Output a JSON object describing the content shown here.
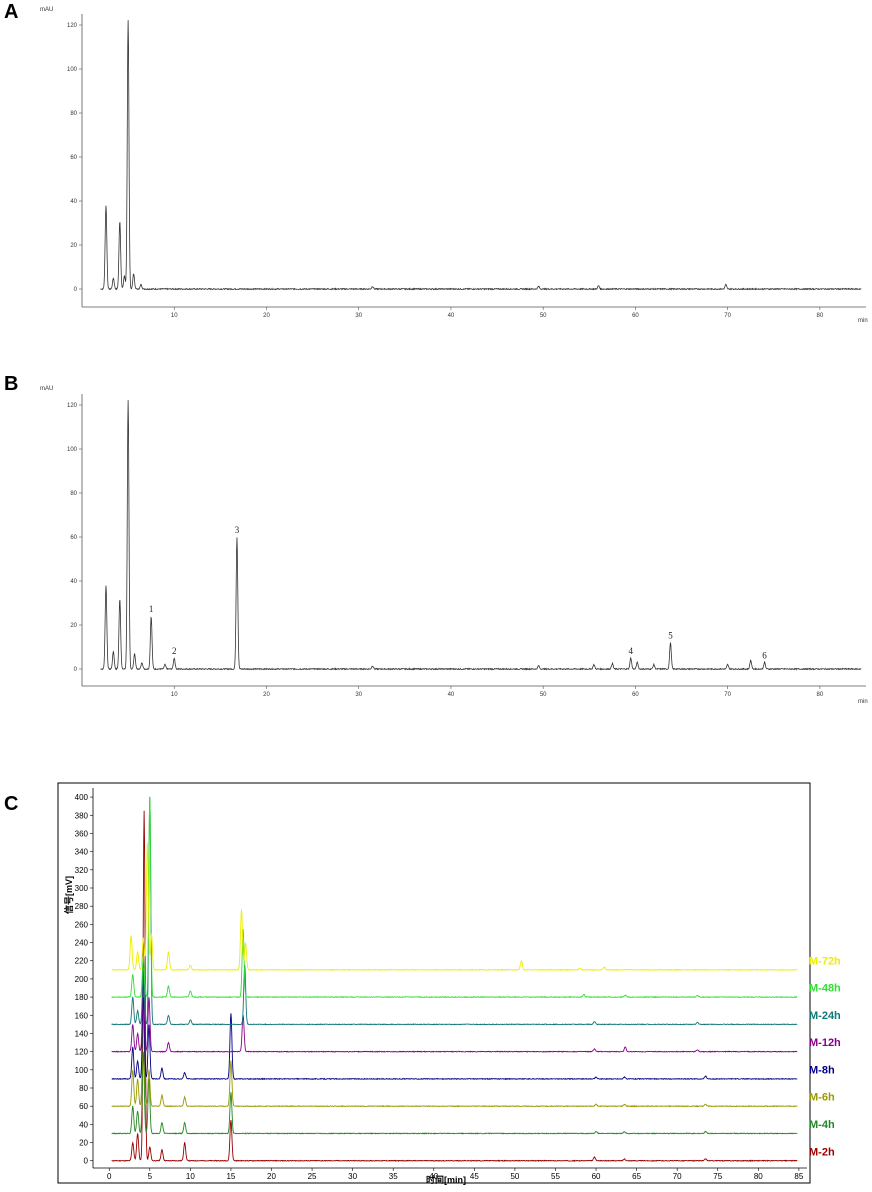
{
  "panels": {
    "a": {
      "letter": "A",
      "y_unit": "mAU",
      "x_unit": "min"
    },
    "b": {
      "letter": "B",
      "y_unit": "mAU",
      "x_unit": "min"
    },
    "c": {
      "letter": "C",
      "ylabel": "信号[mV]",
      "xlabel": "时间[min]"
    }
  },
  "chart_data": [
    {
      "type": "line",
      "panel": "A",
      "xlim": [
        0,
        85
      ],
      "ylim": [
        -5,
        125
      ],
      "x_ticks": [
        10,
        20,
        30,
        40,
        50,
        60,
        70,
        80
      ],
      "y_ticks": [
        0,
        20,
        40,
        60,
        80,
        100,
        120
      ],
      "x_unit": "min",
      "y_unit": "mAU",
      "color": "#333333",
      "peaks": [
        {
          "x": 2.6,
          "y": 38
        },
        {
          "x": 3.4,
          "y": 5
        },
        {
          "x": 4.1,
          "y": 31
        },
        {
          "x": 4.6,
          "y": 6
        },
        {
          "x": 5.0,
          "y": 122
        },
        {
          "x": 5.6,
          "y": 7
        },
        {
          "x": 6.4,
          "y": 2
        },
        {
          "x": 31.5,
          "y": 1.2
        },
        {
          "x": 49.5,
          "y": 1.2
        },
        {
          "x": 56.0,
          "y": 1.5
        },
        {
          "x": 69.8,
          "y": 2
        }
      ]
    },
    {
      "type": "line",
      "panel": "B",
      "xlim": [
        0,
        85
      ],
      "ylim": [
        -5,
        125
      ],
      "x_ticks": [
        10,
        20,
        30,
        40,
        50,
        60,
        70,
        80
      ],
      "y_ticks": [
        0,
        20,
        40,
        60,
        80,
        100,
        120
      ],
      "x_unit": "min",
      "y_unit": "mAU",
      "color": "#333333",
      "peaks": [
        {
          "x": 2.6,
          "y": 38
        },
        {
          "x": 3.4,
          "y": 8
        },
        {
          "x": 4.1,
          "y": 32
        },
        {
          "x": 5.0,
          "y": 122
        },
        {
          "x": 5.7,
          "y": 7
        },
        {
          "x": 6.5,
          "y": 3
        },
        {
          "x": 7.5,
          "y": 24,
          "label": "1"
        },
        {
          "x": 9.0,
          "y": 2
        },
        {
          "x": 10.0,
          "y": 5,
          "label": "2"
        },
        {
          "x": 16.8,
          "y": 60,
          "label": "3"
        },
        {
          "x": 31.5,
          "y": 1.5
        },
        {
          "x": 49.5,
          "y": 1.5
        },
        {
          "x": 55.5,
          "y": 2
        },
        {
          "x": 57.5,
          "y": 2.5
        },
        {
          "x": 59.5,
          "y": 5,
          "label": "4"
        },
        {
          "x": 60.2,
          "y": 3
        },
        {
          "x": 62.0,
          "y": 2
        },
        {
          "x": 63.8,
          "y": 12,
          "label": "5"
        },
        {
          "x": 70.0,
          "y": 2
        },
        {
          "x": 72.5,
          "y": 4
        },
        {
          "x": 74.0,
          "y": 3,
          "label": "6"
        }
      ]
    },
    {
      "type": "line",
      "panel": "C",
      "xlim": [
        -2,
        86
      ],
      "ylim": [
        -8,
        410
      ],
      "x_ticks": [
        0,
        5,
        10,
        15,
        20,
        25,
        30,
        35,
        40,
        45,
        50,
        55,
        60,
        65,
        70,
        75,
        80,
        85
      ],
      "y_ticks": [
        0,
        20,
        40,
        60,
        80,
        100,
        120,
        140,
        160,
        180,
        200,
        220,
        240,
        260,
        280,
        300,
        320,
        340,
        360,
        380,
        400
      ],
      "xlabel": "时间[min]",
      "ylabel": "信号[mV]",
      "series": [
        {
          "name": "M-2h",
          "color": "#990000",
          "offset": 0,
          "peaks": [
            {
              "x": 2.9,
              "y": 20
            },
            {
              "x": 3.5,
              "y": 30
            },
            {
              "x": 4.3,
              "y": 385
            },
            {
              "x": 5.0,
              "y": 15
            },
            {
              "x": 6.5,
              "y": 12
            },
            {
              "x": 9.3,
              "y": 20
            },
            {
              "x": 15.0,
              "y": 45
            },
            {
              "x": 59.8,
              "y": 4
            },
            {
              "x": 63.5,
              "y": 2
            },
            {
              "x": 73.5,
              "y": 2
            }
          ]
        },
        {
          "name": "M-4h",
          "color": "#228822",
          "offset": 30,
          "peaks": [
            {
              "x": 2.9,
              "y": 30
            },
            {
              "x": 3.5,
              "y": 25
            },
            {
              "x": 4.2,
              "y": 90
            },
            {
              "x": 4.9,
              "y": 60
            },
            {
              "x": 6.5,
              "y": 12
            },
            {
              "x": 9.3,
              "y": 12
            },
            {
              "x": 15.0,
              "y": 45
            },
            {
              "x": 60.0,
              "y": 2
            },
            {
              "x": 63.5,
              "y": 2
            },
            {
              "x": 73.5,
              "y": 2
            }
          ]
        },
        {
          "name": "M-6h",
          "color": "#999900",
          "offset": 60,
          "peaks": [
            {
              "x": 2.9,
              "y": 40
            },
            {
              "x": 3.5,
              "y": 30
            },
            {
              "x": 4.2,
              "y": 110
            },
            {
              "x": 4.9,
              "y": 40
            },
            {
              "x": 6.5,
              "y": 12
            },
            {
              "x": 9.3,
              "y": 10
            },
            {
              "x": 15.0,
              "y": 50
            },
            {
              "x": 60.0,
              "y": 2
            },
            {
              "x": 63.5,
              "y": 2
            },
            {
              "x": 73.5,
              "y": 2
            }
          ]
        },
        {
          "name": "M-8h",
          "color": "#000088",
          "offset": 90,
          "peaks": [
            {
              "x": 2.9,
              "y": 35
            },
            {
              "x": 3.5,
              "y": 20
            },
            {
              "x": 4.2,
              "y": 90
            },
            {
              "x": 4.9,
              "y": 60
            },
            {
              "x": 6.5,
              "y": 12
            },
            {
              "x": 9.3,
              "y": 7
            },
            {
              "x": 15.0,
              "y": 72
            },
            {
              "x": 60.0,
              "y": 2
            },
            {
              "x": 63.5,
              "y": 2
            },
            {
              "x": 73.5,
              "y": 3
            }
          ]
        },
        {
          "name": "M-12h",
          "color": "#880088",
          "offset": 120,
          "peaks": [
            {
              "x": 2.9,
              "y": 30
            },
            {
              "x": 3.5,
              "y": 20
            },
            {
              "x": 4.2,
              "y": 80
            },
            {
              "x": 4.9,
              "y": 60
            },
            {
              "x": 7.3,
              "y": 10
            },
            {
              "x": 16.5,
              "y": 40
            },
            {
              "x": 59.8,
              "y": 3
            },
            {
              "x": 63.6,
              "y": 5
            },
            {
              "x": 72.5,
              "y": 2
            }
          ]
        },
        {
          "name": "M-24h",
          "color": "#117777",
          "offset": 150,
          "peaks": [
            {
              "x": 2.9,
              "y": 30
            },
            {
              "x": 3.5,
              "y": 15
            },
            {
              "x": 4.2,
              "y": 60
            },
            {
              "x": 5.0,
              "y": 250
            },
            {
              "x": 7.3,
              "y": 10
            },
            {
              "x": 10.0,
              "y": 5
            },
            {
              "x": 16.7,
              "y": 65
            },
            {
              "x": 59.8,
              "y": 3
            },
            {
              "x": 72.5,
              "y": 2
            }
          ]
        },
        {
          "name": "M-48h",
          "color": "#33dd33",
          "offset": 180,
          "peaks": [
            {
              "x": 2.9,
              "y": 25
            },
            {
              "x": 4.2,
              "y": 45
            },
            {
              "x": 5.0,
              "y": 220
            },
            {
              "x": 7.3,
              "y": 12
            },
            {
              "x": 10.0,
              "y": 7
            },
            {
              "x": 16.5,
              "y": 75
            },
            {
              "x": 58.5,
              "y": 3
            },
            {
              "x": 63.6,
              "y": 2
            },
            {
              "x": 72.5,
              "y": 2
            }
          ]
        },
        {
          "name": "M-72h",
          "color": "#eeee00",
          "offset": 210,
          "peaks": [
            {
              "x": 2.7,
              "y": 38
            },
            {
              "x": 3.5,
              "y": 20
            },
            {
              "x": 4.2,
              "y": 35
            },
            {
              "x": 4.7,
              "y": 140
            },
            {
              "x": 5.2,
              "y": 40
            },
            {
              "x": 7.3,
              "y": 20
            },
            {
              "x": 10.0,
              "y": 5
            },
            {
              "x": 16.3,
              "y": 67
            },
            {
              "x": 16.8,
              "y": 30
            },
            {
              "x": 50.8,
              "y": 10
            },
            {
              "x": 58.0,
              "y": 2
            },
            {
              "x": 61.0,
              "y": 3
            }
          ]
        }
      ]
    }
  ]
}
